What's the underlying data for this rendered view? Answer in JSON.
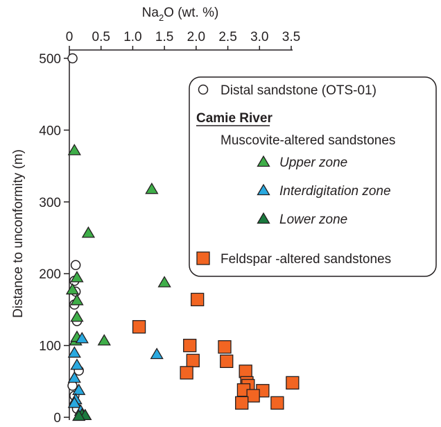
{
  "chart_data": {
    "type": "scatter",
    "title": "",
    "x_axis": {
      "label_prefix": "Na",
      "label_sub": "2",
      "label_suffix": "O (wt. %)",
      "position": "top",
      "ticks": [
        0,
        0.5,
        1.0,
        1.5,
        2.0,
        2.5,
        3.0,
        3.5
      ],
      "tick_labels": [
        "0",
        "0.5",
        "1.0",
        "1.5",
        "2.0",
        "2.5",
        "3.0",
        "3.5"
      ],
      "range": [
        0,
        3.5
      ]
    },
    "y_axis": {
      "label": "Distance to unconformity (m)",
      "ticks": [
        0,
        100,
        200,
        300,
        400,
        500
      ],
      "tick_labels": [
        "0",
        "100",
        "200",
        "300",
        "400",
        "500"
      ],
      "range": [
        0,
        500
      ]
    },
    "grid": false,
    "legend": {
      "placement": "top-right",
      "entries": {
        "distal": "Distal sandstone (OTS-01)",
        "group_title": "Camie River",
        "muscovite_heading": "Muscovite-altered sandstones",
        "upper": "Upper zone",
        "interdigitation": "Interdigitation zone",
        "lower": "Lower zone",
        "feldspar": "Feldspar -altered sandstones"
      }
    },
    "colors": {
      "upper": "#3fae49",
      "interdigitation": "#29a9e0",
      "lower": "#1b7a3e",
      "feldspar": "#f26522",
      "distal": "#ffffff",
      "outline": "#231f20"
    },
    "series": [
      {
        "key": "distal",
        "marker": "circle",
        "points": [
          [
            0.05,
            500
          ],
          [
            0.1,
            212
          ],
          [
            0.08,
            190
          ],
          [
            0.1,
            175
          ],
          [
            0.08,
            157
          ],
          [
            0.12,
            134
          ],
          [
            0.15,
            65
          ],
          [
            0.05,
            44
          ],
          [
            0.08,
            30
          ],
          [
            0.12,
            12
          ]
        ]
      },
      {
        "key": "upper",
        "marker": "triangle",
        "points": [
          [
            0.08,
            372
          ],
          [
            1.3,
            318
          ],
          [
            0.3,
            257
          ],
          [
            1.5,
            188
          ],
          [
            0.12,
            195
          ],
          [
            0.12,
            163
          ],
          [
            0.05,
            178
          ],
          [
            0.12,
            140
          ],
          [
            0.1,
            107
          ],
          [
            0.55,
            107
          ],
          [
            0.12,
            112
          ]
        ]
      },
      {
        "key": "interdigitation",
        "marker": "triangle",
        "points": [
          [
            1.38,
            88
          ],
          [
            0.2,
            110
          ],
          [
            0.08,
            90
          ],
          [
            0.12,
            73
          ],
          [
            0.08,
            55
          ],
          [
            0.15,
            38
          ],
          [
            0.1,
            25
          ],
          [
            0.08,
            20
          ],
          [
            0.18,
            9
          ]
        ]
      },
      {
        "key": "lower",
        "marker": "triangle",
        "points": [
          [
            0.2,
            4
          ],
          [
            0.25,
            3
          ],
          [
            0.15,
            2
          ]
        ]
      },
      {
        "key": "feldspar",
        "marker": "square",
        "points": [
          [
            1.1,
            126
          ],
          [
            2.02,
            164
          ],
          [
            1.9,
            100
          ],
          [
            1.95,
            79
          ],
          [
            1.85,
            62
          ],
          [
            2.45,
            98
          ],
          [
            2.48,
            78
          ],
          [
            2.78,
            64
          ],
          [
            2.8,
            48
          ],
          [
            2.82,
            44
          ],
          [
            2.75,
            38
          ],
          [
            3.05,
            37
          ],
          [
            2.9,
            30
          ],
          [
            2.72,
            20
          ],
          [
            3.28,
            20
          ],
          [
            3.52,
            48
          ]
        ]
      }
    ]
  }
}
